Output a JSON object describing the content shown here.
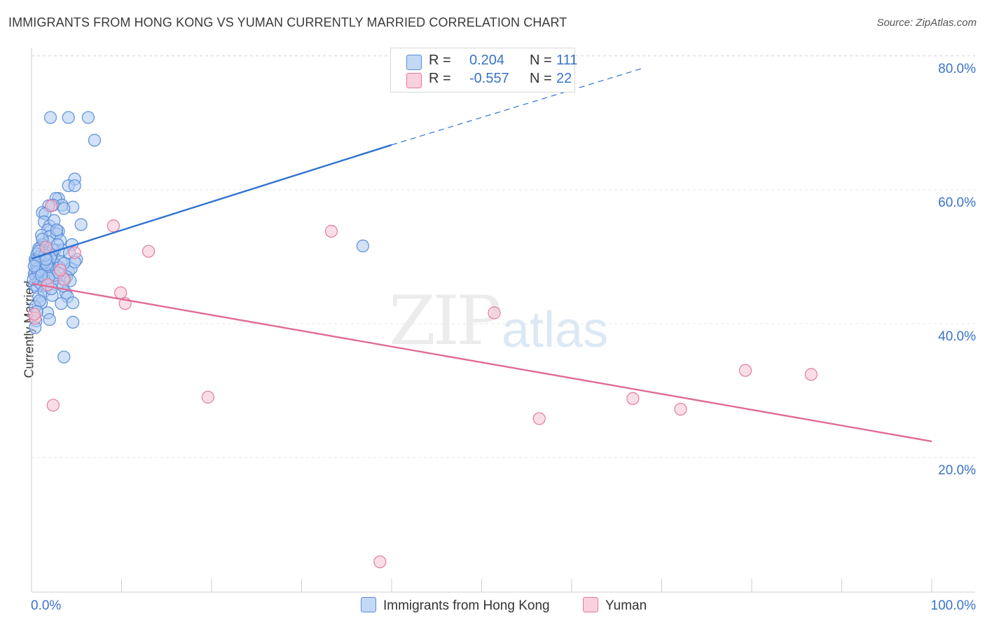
{
  "title": "IMMIGRANTS FROM HONG KONG VS YUMAN CURRENTLY MARRIED CORRELATION CHART",
  "source": "Source: ZipAtlas.com",
  "watermark": {
    "zip": "ZIP",
    "atlas": "atlas"
  },
  "colors": {
    "blue": "#5b8fd8",
    "blue_fill": "#aecbf2",
    "pink": "#e27aa0",
    "pink_fill": "#f6c3d4",
    "blue_line": "#2f74d0",
    "pink_line": "#e06b98",
    "axis_text": "#3a73c8"
  },
  "legend_top": {
    "blue": {
      "r_label": "R =",
      "r_value": "0.204",
      "n_label": "N =",
      "n_value": "111"
    },
    "pink": {
      "r_label": "R =",
      "r_value": "-0.557",
      "n_label": "N =",
      "n_value": "22"
    }
  },
  "legend_bottom": {
    "blue": "Immigrants from Hong Kong",
    "pink": "Yuman"
  },
  "chart_data": {
    "type": "scatter",
    "title": "IMMIGRANTS FROM HONG KONG VS YUMAN CURRENTLY MARRIED CORRELATION CHART",
    "xlabel": "",
    "ylabel": "Currently Married",
    "xlim": [
      0,
      100
    ],
    "ylim": [
      0,
      82
    ],
    "x_tick_labels": [
      "0.0%",
      "100.0%"
    ],
    "y_ticks": [
      20,
      40,
      60,
      80
    ],
    "y_tick_labels": [
      "20.0%",
      "40.0%",
      "60.0%",
      "80.0%"
    ],
    "grid": true,
    "legend_position": "top-center",
    "series": [
      {
        "name": "Immigrants from Hong Kong",
        "r": 0.204,
        "n": 111,
        "trend": {
          "x0": 0,
          "y0": 51.5,
          "x1": 40,
          "y1": 68.5,
          "dashed_to_x": 68,
          "dashed_to_y": 80
        },
        "points": [
          [
            2.1,
            72.6
          ],
          [
            4.1,
            72.6
          ],
          [
            6.3,
            72.6
          ],
          [
            7.0,
            69.2
          ],
          [
            4.8,
            63.4
          ],
          [
            4.1,
            62.4
          ],
          [
            4.8,
            62.4
          ],
          [
            3.0,
            60.5
          ],
          [
            2.7,
            60.5
          ],
          [
            3.4,
            59.5
          ],
          [
            2.4,
            59.5
          ],
          [
            1.9,
            59.4
          ],
          [
            4.6,
            59.2
          ],
          [
            3.6,
            59.0
          ],
          [
            1.2,
            58.4
          ],
          [
            1.5,
            58.2
          ],
          [
            1.4,
            57.0
          ],
          [
            5.5,
            56.6
          ],
          [
            2.0,
            56.4
          ],
          [
            1.8,
            55.8
          ],
          [
            3.0,
            55.6
          ],
          [
            2.8,
            55.2
          ],
          [
            1.1,
            55.0
          ],
          [
            2.0,
            54.8
          ],
          [
            3.2,
            54.2
          ],
          [
            1.9,
            54.0
          ],
          [
            1.2,
            53.6
          ],
          [
            4.5,
            53.6
          ],
          [
            1.0,
            53.2
          ],
          [
            0.8,
            53.0
          ],
          [
            2.6,
            52.8
          ],
          [
            3.4,
            52.8
          ],
          [
            1.6,
            52.4
          ],
          [
            0.6,
            52.2
          ],
          [
            2.2,
            52.0
          ],
          [
            1.3,
            51.6
          ],
          [
            0.4,
            51.4
          ],
          [
            5.0,
            51.4
          ],
          [
            1.8,
            51.2
          ],
          [
            0.7,
            51.0
          ],
          [
            3.3,
            51.0
          ],
          [
            0.5,
            50.6
          ],
          [
            2.7,
            50.6
          ],
          [
            1.9,
            50.4
          ],
          [
            0.9,
            50.2
          ],
          [
            0.6,
            50.0
          ],
          [
            1.4,
            49.8
          ],
          [
            2.3,
            49.8
          ],
          [
            4.1,
            49.6
          ],
          [
            0.4,
            49.6
          ],
          [
            1.1,
            49.4
          ],
          [
            0.3,
            49.2
          ],
          [
            1.7,
            49.2
          ],
          [
            0.9,
            49.0
          ],
          [
            0.5,
            48.8
          ],
          [
            2.8,
            48.6
          ],
          [
            3.7,
            48.4
          ],
          [
            0.8,
            48.2
          ],
          [
            1.5,
            48.0
          ],
          [
            2.9,
            47.8
          ],
          [
            0.3,
            47.6
          ],
          [
            1.6,
            47.4
          ],
          [
            0.6,
            47.2
          ],
          [
            3.8,
            46.4
          ],
          [
            4.0,
            45.8
          ],
          [
            0.8,
            45.8
          ],
          [
            1.1,
            44.9
          ],
          [
            3.3,
            44.8
          ],
          [
            4.6,
            44.9
          ],
          [
            0.4,
            44.3
          ],
          [
            1.8,
            43.4
          ],
          [
            2.0,
            42.4
          ],
          [
            0.5,
            42.2
          ],
          [
            4.6,
            42.0
          ],
          [
            0.4,
            41.2
          ],
          [
            36.8,
            53.4
          ],
          [
            3.6,
            36.8
          ],
          [
            4.2,
            52.4
          ],
          [
            2.4,
            52.8
          ],
          [
            1.3,
            50.9
          ],
          [
            3.1,
            50.2
          ],
          [
            0.9,
            51.8
          ],
          [
            2.6,
            49.0
          ],
          [
            1.0,
            47.8
          ],
          [
            4.4,
            50.0
          ],
          [
            0.7,
            49.6
          ],
          [
            2.1,
            51.6
          ],
          [
            3.5,
            47.4
          ],
          [
            1.4,
            46.6
          ],
          [
            0.2,
            48.4
          ],
          [
            2.9,
            53.6
          ],
          [
            1.7,
            50.6
          ],
          [
            0.5,
            51.2
          ],
          [
            3.9,
            48.8
          ],
          [
            0.9,
            45.2
          ],
          [
            2.3,
            46.0
          ],
          [
            1.2,
            54.4
          ],
          [
            3.0,
            49.4
          ],
          [
            0.6,
            43.6
          ],
          [
            1.5,
            52.0
          ],
          [
            4.8,
            51.0
          ],
          [
            2.5,
            57.2
          ],
          [
            1.9,
            48.6
          ],
          [
            0.3,
            50.4
          ],
          [
            2.8,
            55.8
          ],
          [
            3.6,
            50.8
          ],
          [
            1.1,
            49.0
          ],
          [
            0.8,
            52.6
          ],
          [
            2.2,
            47.0
          ],
          [
            4.3,
            48.2
          ],
          [
            1.6,
            51.4
          ]
        ]
      },
      {
        "name": "Yuman",
        "r": -0.557,
        "n": 22,
        "trend": {
          "x0": 0,
          "y0": 47.8,
          "x1": 100,
          "y1": 24.2
        },
        "points": [
          [
            0.4,
            42.6
          ],
          [
            1.6,
            53.2
          ],
          [
            2.2,
            59.4
          ],
          [
            3.6,
            48.4
          ],
          [
            4.8,
            52.4
          ],
          [
            9.1,
            56.4
          ],
          [
            9.9,
            46.4
          ],
          [
            10.4,
            44.8
          ],
          [
            13.0,
            52.6
          ],
          [
            1.8,
            47.6
          ],
          [
            3.2,
            49.8
          ],
          [
            2.4,
            29.6
          ],
          [
            19.6,
            30.8
          ],
          [
            33.3,
            55.6
          ],
          [
            51.4,
            43.4
          ],
          [
            38.7,
            6.2
          ],
          [
            56.4,
            27.6
          ],
          [
            66.8,
            30.6
          ],
          [
            72.1,
            29.0
          ],
          [
            79.3,
            34.8
          ],
          [
            86.6,
            34.2
          ],
          [
            0.3,
            43.2
          ]
        ]
      }
    ]
  }
}
